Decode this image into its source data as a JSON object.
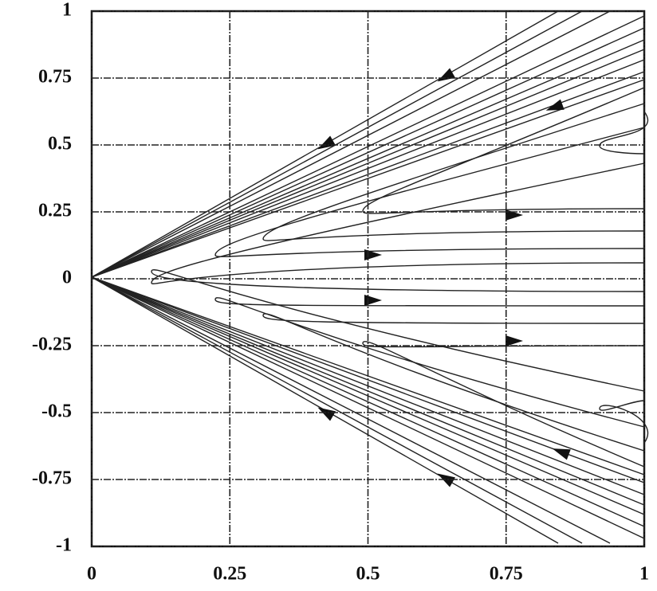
{
  "chart_data": {
    "type": "phase-portrait",
    "xlim": [
      0,
      1
    ],
    "ylim": [
      -1,
      1
    ],
    "xticks": [
      0,
      0.25,
      0.5,
      0.75,
      1
    ],
    "yticks": [
      1,
      0.75,
      0.5,
      0.25,
      0,
      -0.25,
      -0.5,
      -0.75,
      -1
    ],
    "grid": true
  }
}
